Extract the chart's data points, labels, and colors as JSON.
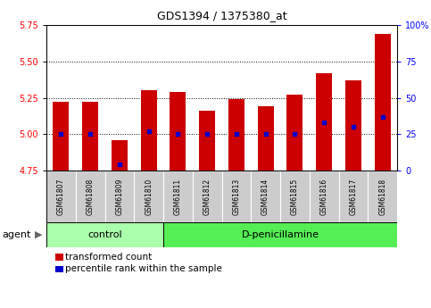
{
  "title": "GDS1394 / 1375380_at",
  "samples": [
    "GSM61807",
    "GSM61808",
    "GSM61809",
    "GSM61810",
    "GSM61811",
    "GSM61812",
    "GSM61813",
    "GSM61814",
    "GSM61815",
    "GSM61816",
    "GSM61817",
    "GSM61818"
  ],
  "transformed_count": [
    5.22,
    5.22,
    4.96,
    5.3,
    5.29,
    5.16,
    5.24,
    5.19,
    5.27,
    5.42,
    5.37,
    5.69
  ],
  "percentile_rank": [
    25,
    25,
    4,
    27,
    25,
    25,
    25,
    25,
    25,
    33,
    30,
    37
  ],
  "bar_bottom": 4.75,
  "ylim_left": [
    4.75,
    5.75
  ],
  "ylim_right": [
    0,
    100
  ],
  "yticks_left": [
    4.75,
    5.0,
    5.25,
    5.5,
    5.75
  ],
  "yticks_right": [
    0,
    25,
    50,
    75,
    100
  ],
  "ytick_labels_right": [
    "0",
    "25",
    "50",
    "75",
    "100%"
  ],
  "hlines": [
    5.0,
    5.25,
    5.5
  ],
  "bar_color": "#cc0000",
  "blue_color": "#0000cc",
  "n_control": 4,
  "n_treatment": 8,
  "control_label": "control",
  "treatment_label": "D-penicillamine",
  "agent_label": "agent",
  "control_bg": "#aaffaa",
  "treatment_bg": "#55ee55",
  "sample_bg": "#cccccc",
  "bar_width": 0.55,
  "legend_items": [
    "transformed count",
    "percentile rank within the sample"
  ],
  "legend_colors": [
    "#cc0000",
    "#0000cc"
  ]
}
